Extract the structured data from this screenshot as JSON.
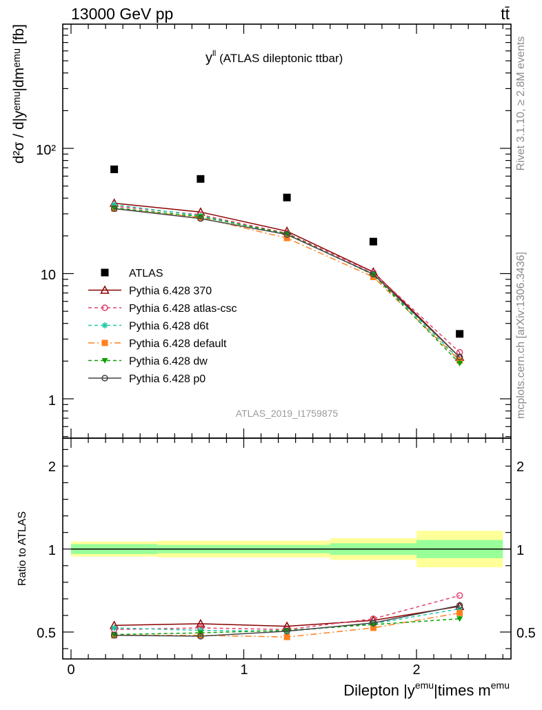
{
  "header": {
    "left": "13000 GeV pp",
    "right": "tt̄"
  },
  "side_text": {
    "rivet": "Rivet 3.1.10, ≥ 2.8M events",
    "mcplots": "mcplots.cern.ch [arXiv:1306.3436]"
  },
  "chart_data": [
    {
      "type": "scatter",
      "panel": "main",
      "title_main": "y",
      "title_sup": "ll",
      "title_rest": " (ATLAS dileptonic ttbar)",
      "analysis_id": "ATLAS_2019_I1759875",
      "ylabel": "d²σ / d|yᵉᵐᵘ|dmᵉᵐᵘ [fb]",
      "yscale": "log",
      "ylim": [
        0.5,
        1000
      ],
      "xlim": [
        -0.1,
        2.55
      ],
      "y_tick_labels": [
        "1",
        "10",
        "10²"
      ],
      "x": [
        0.25,
        0.75,
        1.25,
        1.75,
        2.25
      ],
      "series": [
        {
          "name": "ATLAS",
          "color": "#000000",
          "marker": "square",
          "values": [
            68,
            57,
            40.5,
            18,
            3.3
          ]
        },
        {
          "name": "Pythia 6.428 370",
          "color": "#8b0000",
          "marker": "triangle-open",
          "values": [
            36.5,
            31,
            21.8,
            10.3,
            2.15
          ]
        },
        {
          "name": "Pythia 6.428 atlas-csc",
          "color": "#e0406a",
          "marker": "circle-open",
          "values": [
            34.5,
            29.5,
            21,
            10.2,
            2.35
          ]
        },
        {
          "name": "Pythia 6.428 d6t",
          "color": "#1ec8a8",
          "marker": "star",
          "values": [
            35.5,
            29,
            20.5,
            9.9,
            2.05
          ]
        },
        {
          "name": "Pythia 6.428 default",
          "color": "#ff8020",
          "marker": "square",
          "values": [
            33,
            28,
            19.2,
            9.4,
            2.02
          ]
        },
        {
          "name": "Pythia 6.428 dw",
          "color": "#0aa000",
          "marker": "triangle-down",
          "values": [
            33.5,
            28.5,
            20.8,
            9.8,
            1.92
          ]
        },
        {
          "name": "Pythia 6.428 p0",
          "color": "#444444",
          "marker": "circle-open",
          "values": [
            33,
            27.5,
            20.5,
            9.9,
            2.15
          ]
        }
      ]
    },
    {
      "type": "line",
      "panel": "ratio",
      "ylabel": "Ratio to ATLAS",
      "xlabel_a": "Dilepton |y",
      "xlabel_a_sup": "emu",
      "xlabel_b": "|times m",
      "xlabel_b_sup": "emu",
      "ylim": [
        0.34,
        2.35
      ],
      "xlim": [
        -0.1,
        2.55
      ],
      "x_tick_labels": [
        "0",
        "1",
        "2"
      ],
      "y_tick_labels": [
        "0.5",
        "1",
        "2"
      ],
      "band_edges": [
        0,
        0.5,
        1.0,
        1.5,
        2.0,
        2.5
      ],
      "band_green": [
        0.03,
        0.025,
        0.025,
        0.035,
        0.055
      ],
      "band_yellow": [
        0.045,
        0.05,
        0.05,
        0.065,
        0.11
      ],
      "x": [
        0.25,
        0.75,
        1.25,
        1.75,
        2.25
      ],
      "series": [
        {
          "name": "Pythia 6.428 370",
          "color": "#8b0000",
          "marker": "triangle-open",
          "values": [
            0.54,
            0.55,
            0.535,
            0.57,
            0.655
          ]
        },
        {
          "name": "Pythia 6.428 atlas-csc",
          "color": "#e0406a",
          "marker": "circle-open",
          "values": [
            0.515,
            0.525,
            0.515,
            0.58,
            0.72
          ]
        },
        {
          "name": "Pythia 6.428 d6t",
          "color": "#1ec8a8",
          "marker": "star",
          "values": [
            0.525,
            0.51,
            0.505,
            0.55,
            0.64
          ]
        },
        {
          "name": "Pythia 6.428 default",
          "color": "#ff8020",
          "marker": "square",
          "values": [
            0.48,
            0.48,
            0.47,
            0.525,
            0.615
          ]
        },
        {
          "name": "Pythia 6.428 dw",
          "color": "#0aa000",
          "marker": "triangle-down",
          "values": [
            0.485,
            0.495,
            0.51,
            0.545,
            0.58
          ]
        },
        {
          "name": "Pythia 6.428 p0",
          "color": "#444444",
          "marker": "circle-open",
          "values": [
            0.48,
            0.475,
            0.505,
            0.555,
            0.66
          ]
        }
      ]
    }
  ]
}
